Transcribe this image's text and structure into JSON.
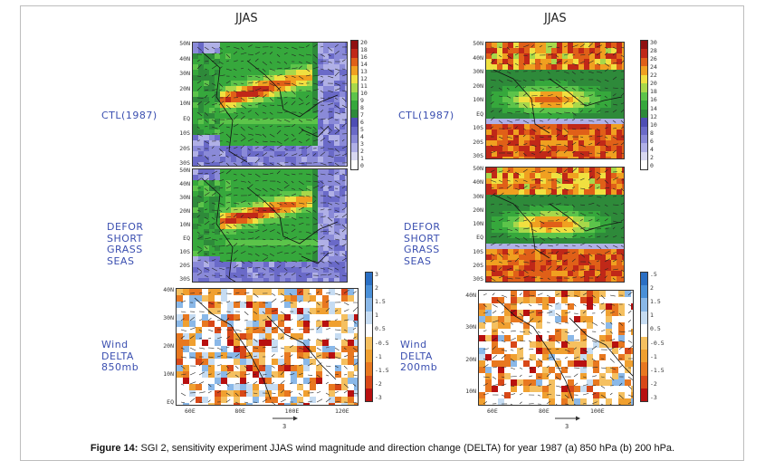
{
  "panel_titles": {
    "left": "JJAS",
    "right": "JJAS"
  },
  "row_labels": {
    "ctl": "CTL(1987)",
    "exp": "DEFOR\nSHORT\nGRASS\nSEAS",
    "delta_left": "Wind\nDELTA\n850mb",
    "delta_right": "Wind\nDELTA\n200mb"
  },
  "lat_ticks_top": [
    "50N",
    "40N",
    "30N",
    "20N",
    "10N",
    "EQ",
    "10S",
    "20S",
    "30S"
  ],
  "lat_ticks_delta_left": [
    "40N",
    "30N",
    "20N",
    "10N",
    "EQ"
  ],
  "lat_ticks_delta_right": [
    "40N",
    "30N",
    "20N",
    "10N"
  ],
  "lon_ticks_left": [
    "60E",
    "80E",
    "100E",
    "120E"
  ],
  "lon_ticks_right": [
    "60E",
    "80E",
    "100E"
  ],
  "colorbar_850": [
    "20",
    "18",
    "16",
    "14",
    "13",
    "12",
    "11",
    "10",
    "9",
    "8",
    "7",
    "6",
    "5",
    "4",
    "3",
    "2",
    "1",
    "0"
  ],
  "colorbar_200": [
    "30",
    "28",
    "26",
    "24",
    "22",
    "20",
    "18",
    "16",
    "14",
    "12",
    "10",
    "8",
    "6",
    "4",
    "2",
    "0"
  ],
  "colorbar_delta_left": [
    "3",
    "2",
    "1.5",
    "1",
    "0.5",
    "-0.5",
    "-1",
    "-1.5",
    "-2",
    "-3"
  ],
  "colorbar_delta_right": [
    ".5",
    "2",
    "1.5",
    "1",
    "0.5",
    "-0.5",
    "-1",
    "-1.5",
    "-2",
    "-3"
  ],
  "reference_vector": {
    "left": "3",
    "right": "3"
  },
  "caption": {
    "label": "Figure 14:",
    "text": " SGI 2, sensitivity experiment JJAS wind magnitude and direction change (DELTA) for year 1987 (a) 850 hPa (b) 200 hPa."
  },
  "colors": {
    "wind_scale": [
      "#ffffff",
      "#d8d8f0",
      "#b0b0e6",
      "#8a8ad8",
      "#6a6ac8",
      "#4e4eb4",
      "#2e8a3a",
      "#36a83c",
      "#5cc44a",
      "#a8d84a",
      "#f0e040",
      "#f0a020",
      "#e06018",
      "#c02818",
      "#901010"
    ],
    "delta_scale": [
      "#2a6fc4",
      "#4a90d8",
      "#8ab8e8",
      "#c6dcf2",
      "#ffffff",
      "#f5c060",
      "#f0a030",
      "#e87820",
      "#d84818",
      "#b81010"
    ]
  }
}
